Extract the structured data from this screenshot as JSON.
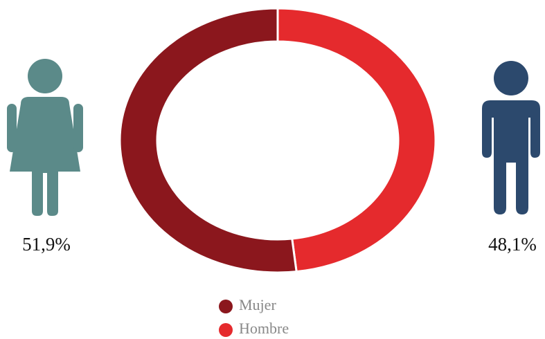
{
  "chart_data": {
    "type": "pie",
    "donut": true,
    "categories": [
      "Mujer",
      "Hombre"
    ],
    "values": [
      51.9,
      48.1
    ],
    "value_labels": [
      "51,9%",
      "48,1%"
    ],
    "colors": [
      "#8b171d",
      "#e52a2d"
    ]
  }
}
